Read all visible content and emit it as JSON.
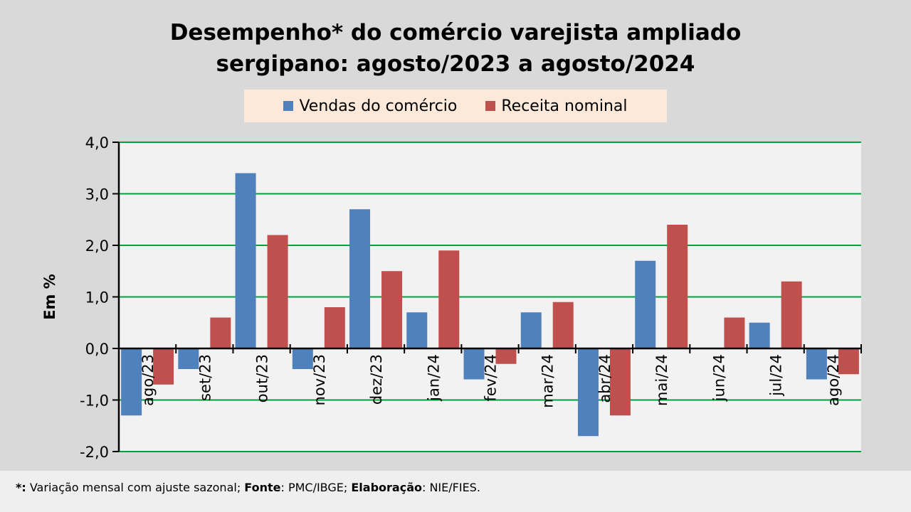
{
  "chart_data": {
    "type": "bar",
    "title": "Desempenho* do comércio varejista ampliado sergipano: agosto/2023 a agosto/2024",
    "title_lines": [
      "Desempenho* do comércio varejista ampliado",
      "sergipano: agosto/2023 a agosto/2024"
    ],
    "xlabel": "",
    "ylabel": "Em %",
    "ylim": [
      -2,
      4
    ],
    "yticks": [
      "-2,0",
      "-1,0",
      "0,0",
      "1,0",
      "2,0",
      "3,0",
      "4,0"
    ],
    "grid": true,
    "legend_position": "top",
    "categories": [
      "ago/23",
      "set/23",
      "out/23",
      "nov/23",
      "dez/23",
      "jan/24",
      "fev/24",
      "mar/24",
      "abr/24",
      "mai/24",
      "jun/24",
      "jul/24",
      "ago/24"
    ],
    "series": [
      {
        "name": "Vendas do comércio",
        "color": "#4f81bd",
        "values": [
          -1.3,
          -0.4,
          3.4,
          -0.4,
          2.7,
          0.7,
          -0.6,
          0.7,
          -1.7,
          1.7,
          0.0,
          0.5,
          -0.6
        ]
      },
      {
        "name": "Receita nominal",
        "color": "#c0504d",
        "values": [
          -0.7,
          0.6,
          2.2,
          0.8,
          1.5,
          1.9,
          -0.3,
          0.9,
          -1.3,
          2.4,
          0.6,
          1.3,
          -0.5
        ]
      }
    ]
  },
  "footer": {
    "star": "*:",
    "note": " Variação mensal com ajuste sazonal; ",
    "fonte_label": "Fonte",
    "fonte_value": ": PMC/IBGE; ",
    "elab_label": "Elaboração",
    "elab_value": ": NIE/FIES."
  }
}
